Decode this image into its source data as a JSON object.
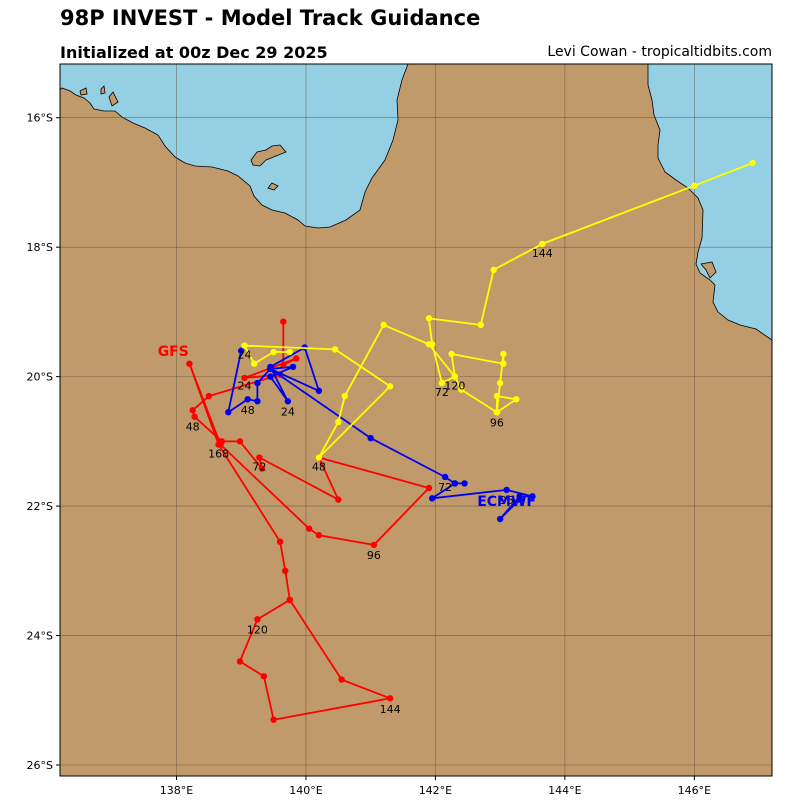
{
  "header": {
    "title": "98P INVEST - Model Track Guidance",
    "subtitle": "Initialized at 00z Dec 29 2025",
    "credit": "Levi Cowan - tropicaltidbits.com"
  },
  "colors": {
    "land": "#c09a6b",
    "water": "#94cfe3",
    "grid": "#5e4a36",
    "GFS": "#ff0000",
    "ECMWF": "#0000ee",
    "third_track": "#ffff00"
  },
  "axes": {
    "lon_range": [
      136.2,
      147.2
    ],
    "lat_range": [
      -26.17,
      -15.17
    ],
    "lon_ticks": [
      {
        "v": 138,
        "label": "138°E"
      },
      {
        "v": 140,
        "label": "140°E"
      },
      {
        "v": 142,
        "label": "142°E"
      },
      {
        "v": 144,
        "label": "144°E"
      },
      {
        "v": 146,
        "label": "146°E"
      }
    ],
    "lat_ticks": [
      {
        "v": -16,
        "label": "16°S"
      },
      {
        "v": -18,
        "label": "18°S"
      },
      {
        "v": -20,
        "label": "20°S"
      },
      {
        "v": -22,
        "label": "22°S"
      },
      {
        "v": -24,
        "label": "24°S"
      },
      {
        "v": -26,
        "label": "26°S"
      }
    ]
  },
  "tracks": [
    {
      "id": "gfs",
      "name": "GFS",
      "color": "#ff0000",
      "name_label": {
        "lon": 137.95,
        "lat": -19.68
      },
      "points": [
        [
          139.65,
          -19.15
        ],
        [
          139.65,
          -19.82
        ],
        [
          139.85,
          -19.72
        ],
        [
          139.05,
          -20.02
        ],
        [
          139.6,
          -19.97
        ],
        [
          138.5,
          -20.3
        ],
        [
          138.25,
          -20.52
        ],
        [
          138.28,
          -20.62
        ],
        [
          138.7,
          -21.0
        ],
        [
          138.98,
          -21.0
        ],
        [
          139.32,
          -21.42
        ],
        [
          139.28,
          -21.25
        ],
        [
          140.5,
          -21.9
        ],
        [
          140.2,
          -21.25
        ],
        [
          141.9,
          -21.72
        ],
        [
          141.05,
          -22.6
        ],
        [
          140.2,
          -22.45
        ],
        [
          140.05,
          -22.35
        ],
        [
          138.68,
          -21.05
        ],
        [
          138.2,
          -19.8
        ],
        [
          138.65,
          -21.05
        ],
        [
          139.6,
          -22.55
        ],
        [
          139.68,
          -23.0
        ],
        [
          139.75,
          -23.45
        ],
        [
          139.25,
          -23.75
        ],
        [
          138.98,
          -24.4
        ],
        [
          139.35,
          -24.63
        ],
        [
          139.5,
          -25.3
        ],
        [
          141.3,
          -24.97
        ],
        [
          140.55,
          -24.68
        ],
        [
          139.75,
          -23.45
        ],
        [
          139.25,
          -23.75
        ]
      ],
      "hour_labels": [
        {
          "text": "24",
          "lon": 139.05,
          "lat": -20.2
        },
        {
          "text": "48",
          "lon": 138.25,
          "lat": -20.83
        },
        {
          "text": "168",
          "lon": 138.65,
          "lat": -21.25
        },
        {
          "text": "72",
          "lon": 139.28,
          "lat": -21.45
        },
        {
          "text": "96",
          "lon": 141.05,
          "lat": -22.82
        },
        {
          "text": "120",
          "lon": 139.25,
          "lat": -23.97
        },
        {
          "text": "144",
          "lon": 141.3,
          "lat": -25.2
        }
      ]
    },
    {
      "id": "ecmwf",
      "name": "ECMWF",
      "color": "#0000ee",
      "name_label": {
        "lon": 143.1,
        "lat": -22.0
      },
      "points": [
        [
          139.0,
          -19.6
        ],
        [
          138.8,
          -20.55
        ],
        [
          139.1,
          -20.35
        ],
        [
          139.25,
          -20.38
        ],
        [
          139.25,
          -20.1
        ],
        [
          139.45,
          -19.88
        ],
        [
          139.8,
          -19.85
        ],
        [
          139.45,
          -20.0
        ],
        [
          139.72,
          -20.38
        ],
        [
          139.45,
          -19.85
        ],
        [
          139.98,
          -19.55
        ],
        [
          140.2,
          -20.22
        ],
        [
          139.45,
          -19.88
        ],
        [
          141.0,
          -20.95
        ],
        [
          142.15,
          -21.55
        ],
        [
          142.3,
          -21.65
        ],
        [
          142.45,
          -21.65
        ],
        [
          142.3,
          -21.65
        ],
        [
          141.95,
          -21.88
        ],
        [
          143.1,
          -21.75
        ],
        [
          143.5,
          -21.85
        ],
        [
          143.3,
          -21.85
        ],
        [
          143.0,
          -22.2
        ],
        [
          143.3,
          -21.9
        ]
      ],
      "hour_labels": [
        {
          "text": "48",
          "lon": 139.1,
          "lat": -20.58
        },
        {
          "text": "24",
          "lon": 139.72,
          "lat": -20.6
        },
        {
          "text": "72",
          "lon": 142.15,
          "lat": -21.77
        },
        {
          "text": "96",
          "lon": 143.1,
          "lat": -21.97
        }
      ]
    },
    {
      "id": "third",
      "name": "",
      "color": "#ffff00",
      "name_label": null,
      "points": [
        [
          146.9,
          -16.7
        ],
        [
          146.0,
          -17.05
        ],
        [
          143.65,
          -17.95
        ],
        [
          142.9,
          -18.35
        ],
        [
          142.7,
          -19.2
        ],
        [
          141.9,
          -19.1
        ],
        [
          141.95,
          -19.5
        ],
        [
          142.1,
          -20.1
        ],
        [
          142.3,
          -20.0
        ],
        [
          142.25,
          -19.65
        ],
        [
          143.05,
          -19.8
        ],
        [
          143.05,
          -19.65
        ],
        [
          143.0,
          -20.1
        ],
        [
          142.95,
          -20.55
        ],
        [
          143.25,
          -20.35
        ],
        [
          142.95,
          -20.3
        ],
        [
          142.95,
          -20.55
        ],
        [
          142.4,
          -20.2
        ],
        [
          142.3,
          -20.0
        ],
        [
          141.9,
          -19.5
        ],
        [
          141.2,
          -19.2
        ],
        [
          140.6,
          -20.3
        ],
        [
          140.5,
          -20.7
        ],
        [
          140.2,
          -21.25
        ],
        [
          141.3,
          -20.15
        ],
        [
          140.45,
          -19.58
        ],
        [
          139.05,
          -19.52
        ],
        [
          139.2,
          -19.8
        ],
        [
          139.5,
          -19.62
        ],
        [
          139.75,
          -19.62
        ]
      ],
      "hour_labels": [
        {
          "text": "144",
          "lon": 143.65,
          "lat": -18.15
        },
        {
          "text": "120",
          "lon": 142.3,
          "lat": -20.2
        },
        {
          "text": "72",
          "lon": 142.1,
          "lat": -20.3
        },
        {
          "text": "96",
          "lon": 142.95,
          "lat": -20.77
        },
        {
          "text": "48",
          "lon": 140.2,
          "lat": -21.45
        },
        {
          "text": "24",
          "lon": 139.05,
          "lat": -19.72
        }
      ]
    }
  ]
}
